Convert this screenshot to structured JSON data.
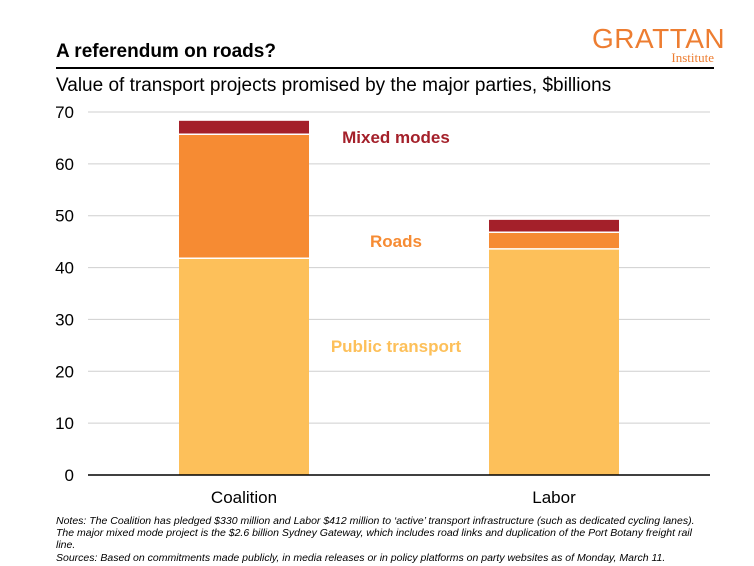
{
  "header": {
    "title": "A referendum on roads?",
    "subtitle": "Value of transport projects promised by the major parties, $billions",
    "logo_main": "GRATTAN",
    "logo_sub": "Institute"
  },
  "chart_data": {
    "type": "bar",
    "stacked": true,
    "categories": [
      "Coalition",
      "Labor"
    ],
    "series": [
      {
        "name": "Public transport",
        "values": [
          41.8,
          43.6
        ],
        "color": "#fdc05a"
      },
      {
        "name": "Roads",
        "values": [
          23.9,
          3.2
        ],
        "color": "#f68b33"
      },
      {
        "name": "Mixed modes",
        "values": [
          2.6,
          2.4
        ],
        "color": "#a4202a"
      }
    ],
    "ylim": [
      0,
      70
    ],
    "yticks": [
      0,
      10,
      20,
      30,
      40,
      50,
      60,
      70
    ],
    "grid": true,
    "xlabel": "",
    "ylabel": ""
  },
  "notes": {
    "line1": "Notes: The Coalition has pledged $330 million and Labor $412 million to ‘active’ transport infrastructure (such as dedicated cycling lanes). The major mixed mode project is the $2.6 billion Sydney Gateway, which includes road links and duplication of the Port Botany freight rail line.",
    "line2": "Sources: Based on commitments made publicly, in media releases or in policy platforms on party websites as of Monday, March 11."
  }
}
